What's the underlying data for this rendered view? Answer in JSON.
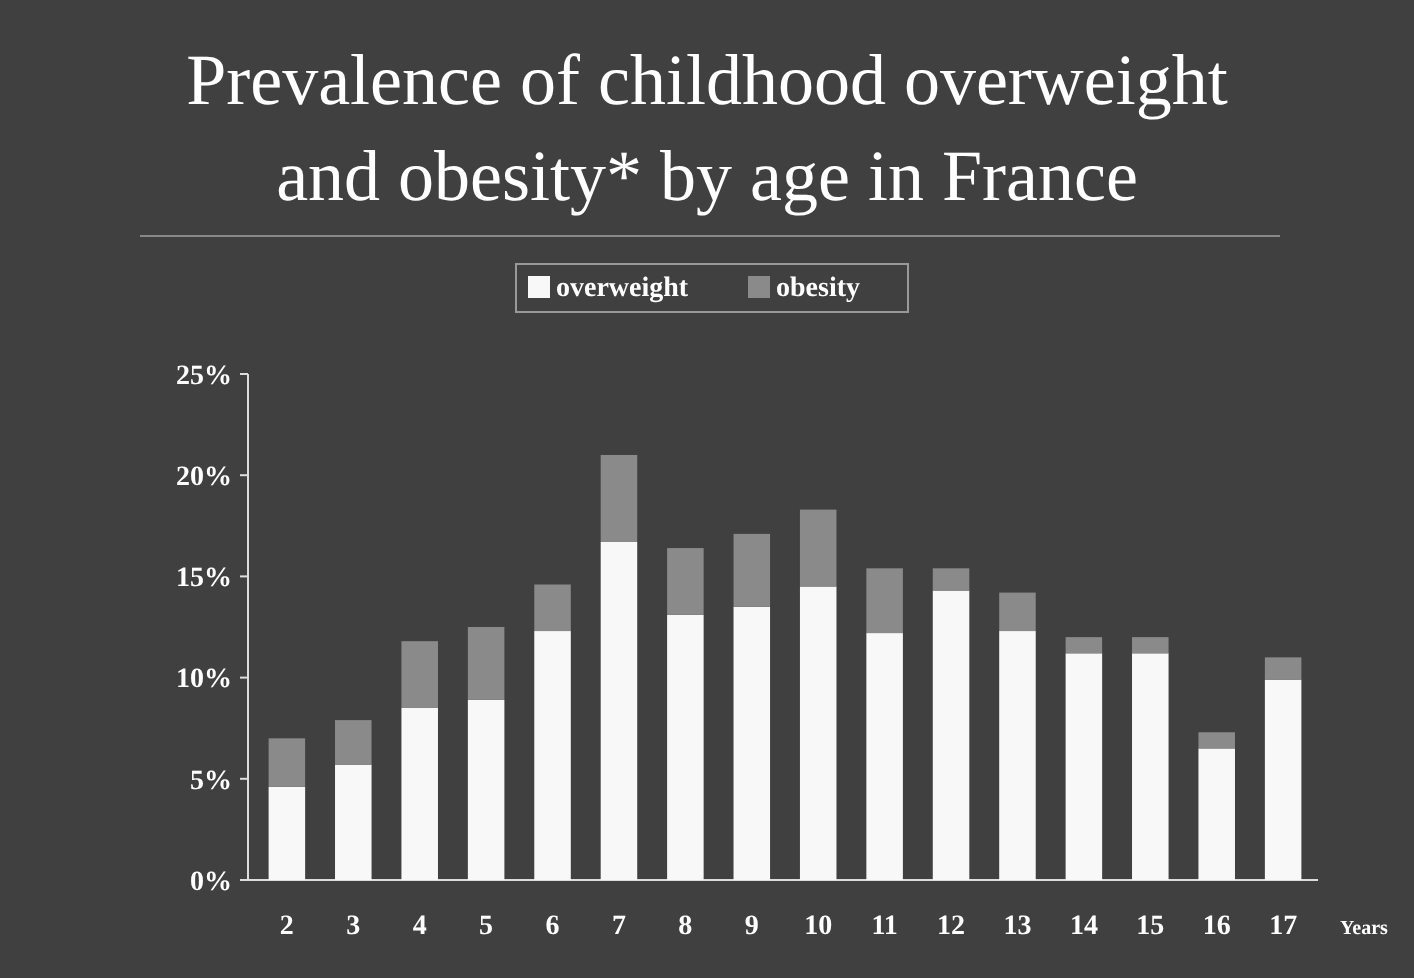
{
  "chart_data": {
    "type": "bar",
    "title": "Prevalence of childhood overweight and obesity* by age in France",
    "xlabel": "Years",
    "categories": [
      "2",
      "3",
      "4",
      "5",
      "6",
      "7",
      "8",
      "9",
      "10",
      "11",
      "12",
      "13",
      "14",
      "15",
      "16",
      "17"
    ],
    "stacked": true,
    "legend": "top",
    "ylim": [
      0,
      0.25
    ],
    "yticks": [
      {
        "value": 0,
        "label": "0%"
      },
      {
        "value": 0.05,
        "label": "5%"
      },
      {
        "value": 0.1,
        "label": "10%"
      },
      {
        "value": 0.15,
        "label": "15%"
      },
      {
        "value": 0.2,
        "label": "20%"
      },
      {
        "value": 0.25,
        "label": "25%"
      }
    ],
    "series": [
      {
        "name": "overweight",
        "color": "#f8f8f8",
        "values": [
          0.046,
          0.057,
          0.085,
          0.089,
          0.123,
          0.167,
          0.131,
          0.135,
          0.145,
          0.122,
          0.143,
          0.123,
          0.112,
          0.112,
          0.065,
          0.099
        ]
      },
      {
        "name": "obesity",
        "color": "#8a8a8a",
        "values": [
          0.024,
          0.022,
          0.033,
          0.036,
          0.023,
          0.043,
          0.033,
          0.036,
          0.038,
          0.032,
          0.011,
          0.019,
          0.008,
          0.008,
          0.008,
          0.011
        ]
      }
    ]
  }
}
